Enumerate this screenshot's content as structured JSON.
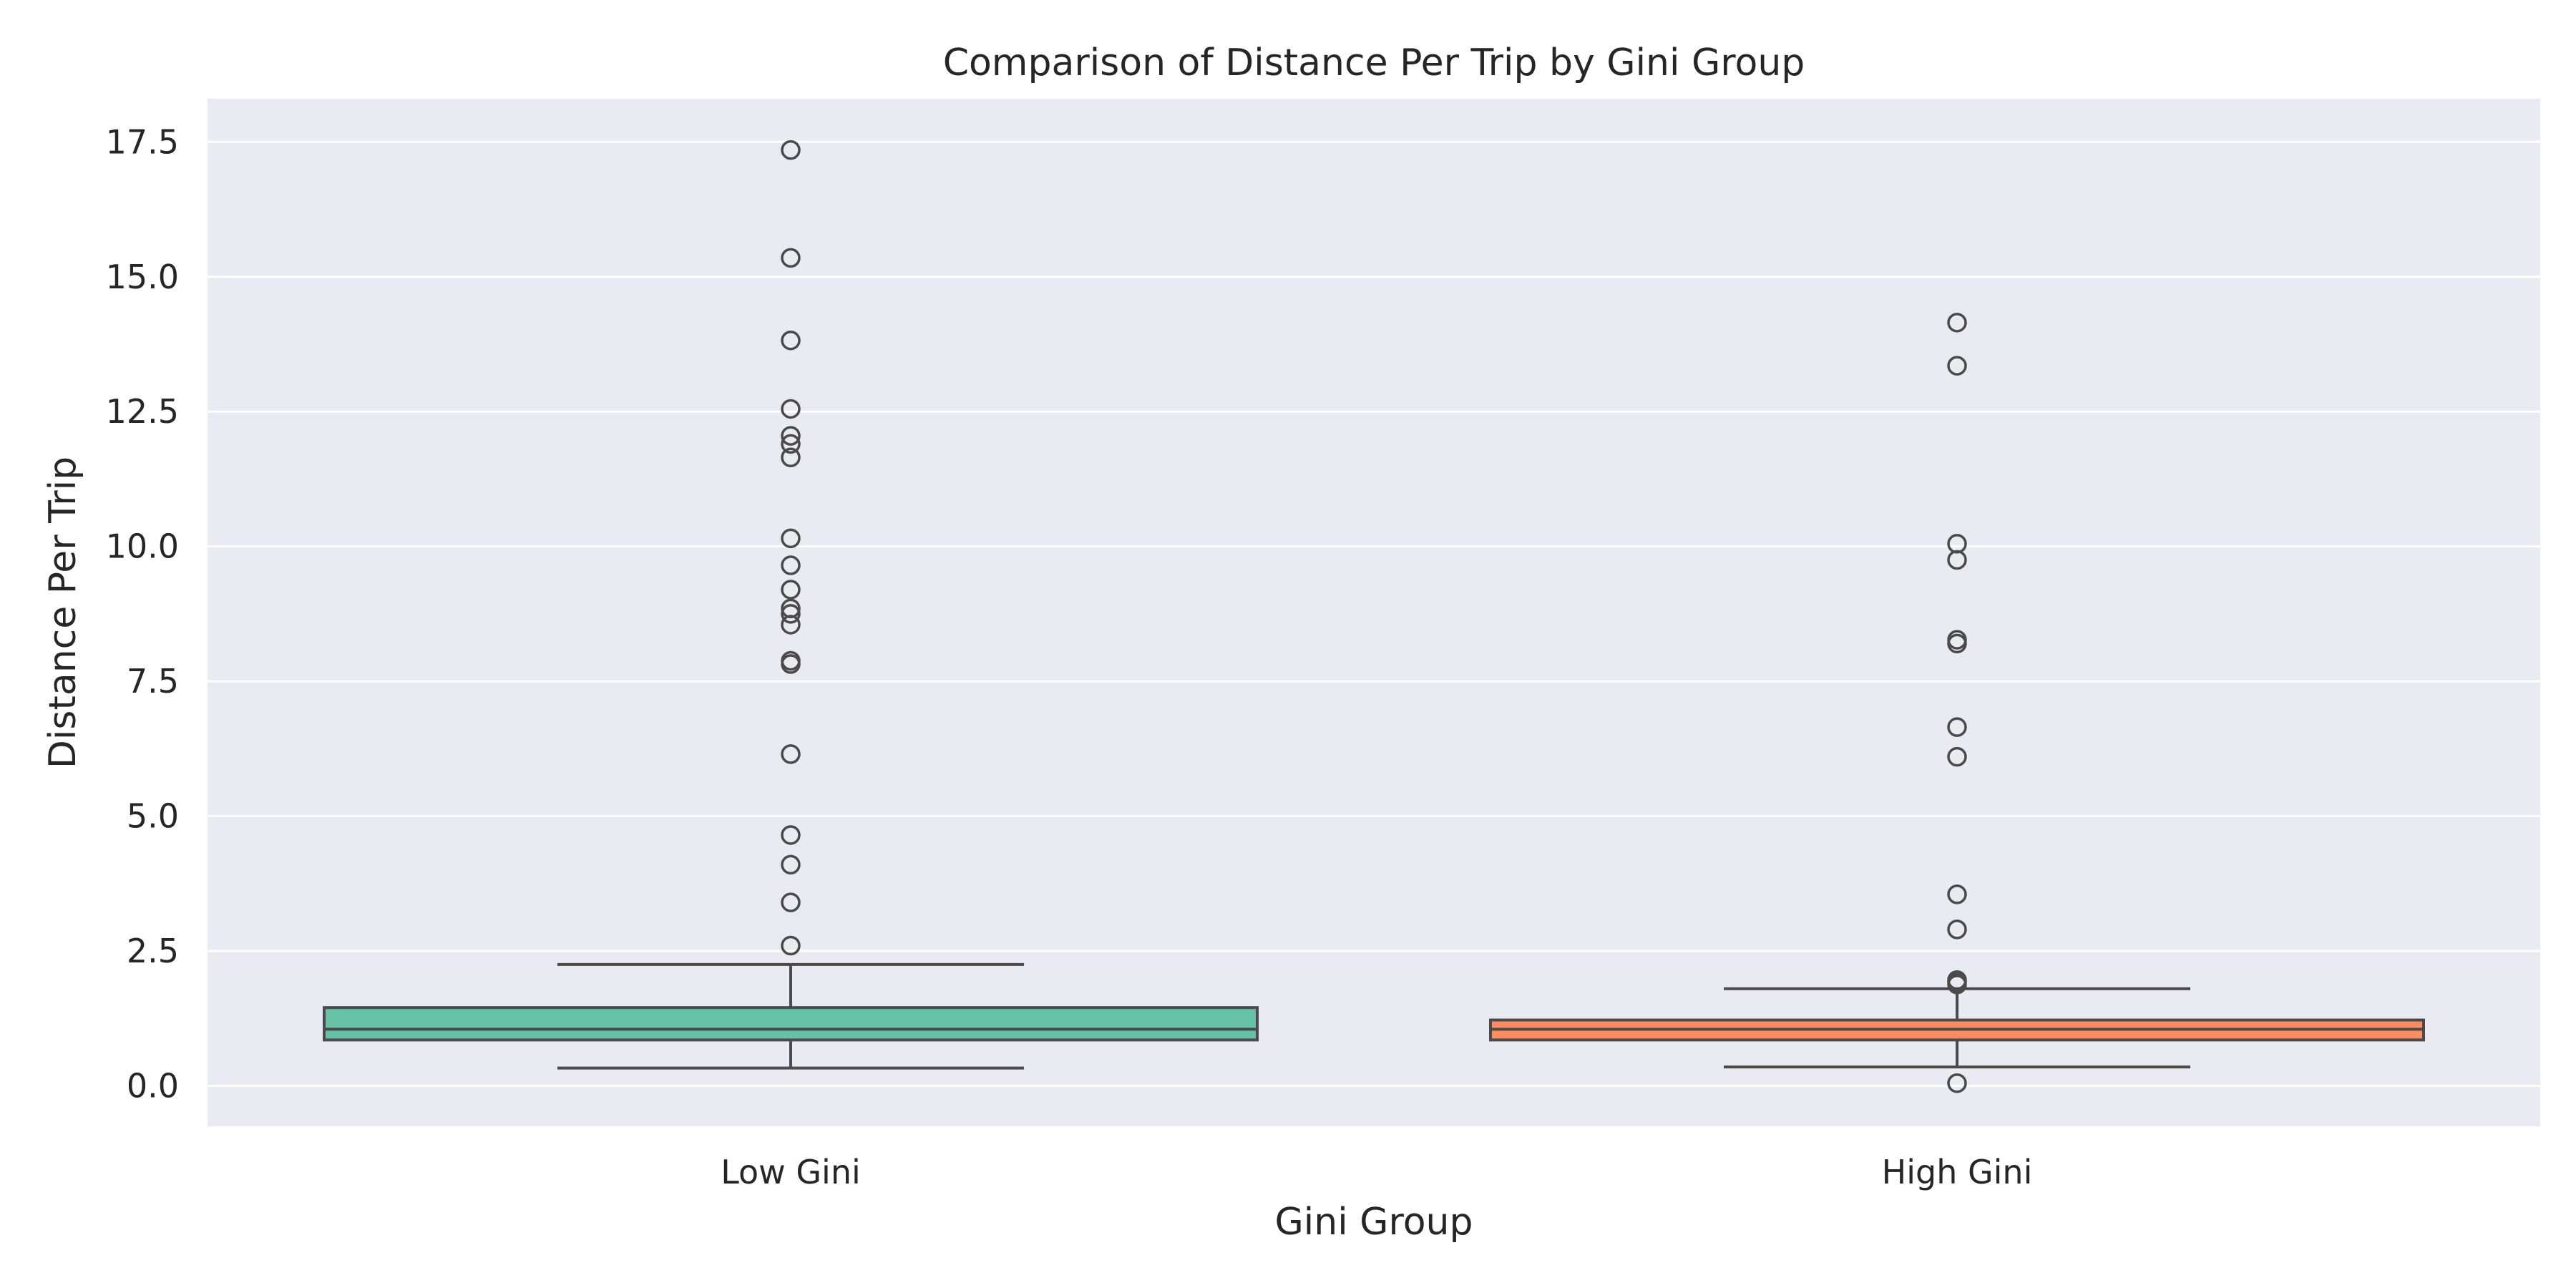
{
  "chart_data": {
    "type": "boxplot",
    "title": "Comparison of Distance Per Trip by Gini Group",
    "xlabel": "Gini Group",
    "ylabel": "Distance Per Trip",
    "ylim": [
      -0.75,
      18.3
    ],
    "yticks": [
      0.0,
      2.5,
      5.0,
      7.5,
      10.0,
      12.5,
      15.0,
      17.5
    ],
    "ytick_labels": [
      "0.0",
      "2.5",
      "5.0",
      "7.5",
      "10.0",
      "12.5",
      "15.0",
      "17.5"
    ],
    "grid": true,
    "categories": [
      "Low Gini",
      "High Gini"
    ],
    "boxes": [
      {
        "category": "Low Gini",
        "color": "#66c2a5",
        "whisker_low": 0.33,
        "q1": 0.85,
        "median": 1.05,
        "q3": 1.45,
        "whisker_high": 2.25,
        "outliers": [
          2.6,
          3.4,
          4.1,
          4.65,
          6.15,
          7.82,
          7.88,
          8.55,
          8.75,
          8.85,
          9.2,
          9.65,
          10.15,
          11.65,
          11.9,
          12.05,
          12.55,
          13.82,
          15.35,
          17.35
        ]
      },
      {
        "category": "High Gini",
        "color": "#fc8d62",
        "whisker_low": 0.35,
        "q1": 0.85,
        "median": 1.05,
        "q3": 1.22,
        "whisker_high": 1.8,
        "outliers": [
          0.05,
          1.88,
          1.92,
          1.96,
          2.9,
          3.55,
          6.1,
          6.65,
          8.2,
          8.27,
          9.75,
          10.05,
          13.35,
          14.15
        ]
      }
    ]
  }
}
